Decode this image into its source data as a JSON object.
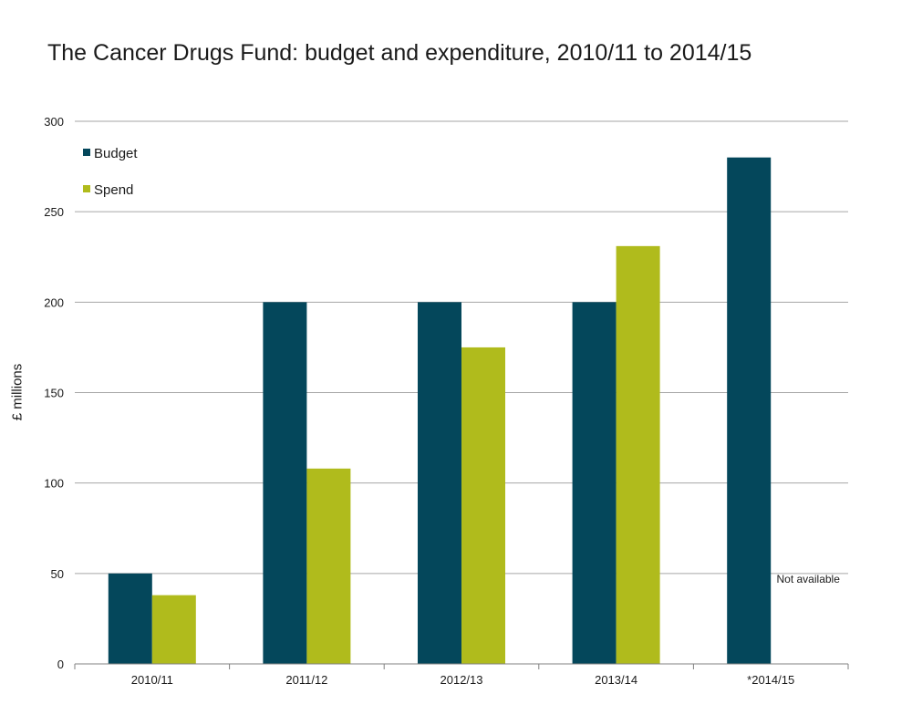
{
  "chart_data": {
    "type": "bar",
    "title": "The Cancer Drugs Fund: budget and expenditure, 2010/11 to 2014/15",
    "xlabel": "",
    "ylabel": "£ millions",
    "ylim": [
      0,
      300
    ],
    "yticks": [
      0,
      50,
      100,
      150,
      200,
      250,
      300
    ],
    "grid": true,
    "legend_position": "top-left",
    "categories": [
      "2010/11",
      "2011/12",
      "2012/13",
      "2013/14",
      "*2014/15"
    ],
    "series": [
      {
        "name": "Budget",
        "color": "#04475b",
        "values": [
          50,
          200,
          200,
          200,
          280
        ]
      },
      {
        "name": "Spend",
        "color": "#b0bb1c",
        "values": [
          38,
          108,
          175,
          231,
          null
        ]
      }
    ],
    "annotations": [
      {
        "text": "Not available",
        "category": "*2014/15",
        "series": "Spend",
        "value": 45
      }
    ]
  }
}
